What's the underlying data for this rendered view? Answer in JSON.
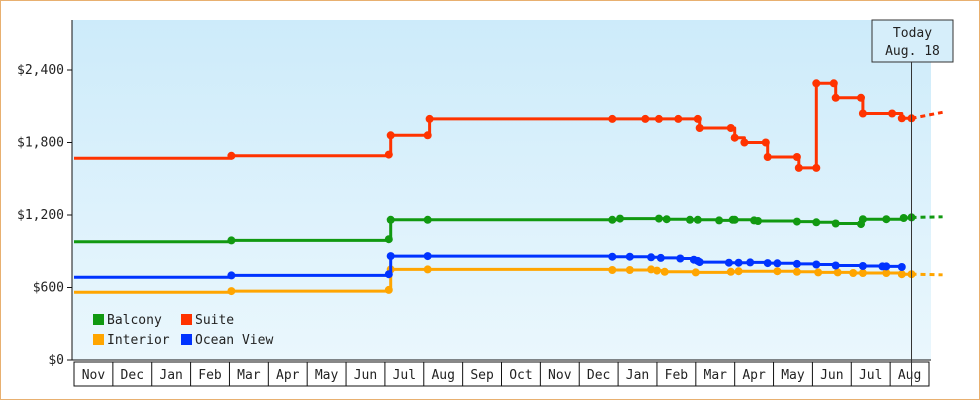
{
  "chart_data": {
    "type": "line",
    "step": true,
    "x_unit": "month index (0 = Nov start of first year)",
    "ylim": [
      0,
      2400
    ],
    "ytick_values": [
      0,
      600,
      1200,
      1800,
      2400
    ],
    "ytick_labels": [
      "$0",
      "$600",
      "$1,200",
      "$1,800",
      "$2,400"
    ],
    "month_labels": [
      "Nov",
      "Dec",
      "Jan",
      "Feb",
      "Mar",
      "Apr",
      "May",
      "Jun",
      "Jul",
      "Aug",
      "Sep",
      "Oct",
      "Nov",
      "Dec",
      "Jan",
      "Feb",
      "Mar",
      "Apr",
      "May",
      "Jun",
      "Jul",
      "Aug"
    ],
    "grid": false,
    "legend_position": "bottom-left",
    "today": {
      "line1": "Today",
      "line2": "Aug. 18",
      "x": 21.55
    },
    "colors": {
      "plot_top": "#cdebfa",
      "plot_bottom": "#eaf7fd",
      "border": "#e8b070"
    },
    "series": [
      {
        "name": "Balcony",
        "color": "#119911",
        "points": [
          [
            0,
            978
          ],
          [
            4.05,
            990
          ],
          [
            8.1,
            1000
          ],
          [
            8.15,
            1160
          ],
          [
            9.1,
            1160
          ],
          [
            13.85,
            1160
          ],
          [
            14.05,
            1170
          ],
          [
            15.05,
            1170
          ],
          [
            15.25,
            1165
          ],
          [
            15.85,
            1160
          ],
          [
            16.05,
            1160
          ],
          [
            16.6,
            1155
          ],
          [
            16.95,
            1160
          ],
          [
            17.0,
            1160
          ],
          [
            17.5,
            1155
          ],
          [
            17.6,
            1150
          ],
          [
            18.6,
            1145
          ],
          [
            19.1,
            1140
          ],
          [
            19.6,
            1130
          ],
          [
            20.25,
            1125
          ],
          [
            20.3,
            1165
          ],
          [
            20.9,
            1165
          ],
          [
            21.35,
            1175
          ],
          [
            21.55,
            1180
          ]
        ],
        "projection": [
          21.55,
          1180,
          22.35,
          1185
        ]
      },
      {
        "name": "Suite",
        "color": "#ff3300",
        "points": [
          [
            0,
            1670
          ],
          [
            4.05,
            1690
          ],
          [
            8.1,
            1700
          ],
          [
            8.15,
            1860
          ],
          [
            9.1,
            1860
          ],
          [
            9.15,
            1995
          ],
          [
            13.85,
            1995
          ],
          [
            14.7,
            1995
          ],
          [
            15.05,
            1995
          ],
          [
            15.55,
            1995
          ],
          [
            16.05,
            1995
          ],
          [
            16.1,
            1920
          ],
          [
            16.9,
            1920
          ],
          [
            17.0,
            1840
          ],
          [
            17.25,
            1800
          ],
          [
            17.8,
            1800
          ],
          [
            17.85,
            1680
          ],
          [
            18.6,
            1680
          ],
          [
            18.65,
            1590
          ],
          [
            19.1,
            1590
          ],
          [
            19.1,
            2290
          ],
          [
            19.55,
            2290
          ],
          [
            19.6,
            2170
          ],
          [
            20.25,
            2170
          ],
          [
            20.3,
            2040
          ],
          [
            21.05,
            2040
          ],
          [
            21.3,
            2000
          ],
          [
            21.55,
            2000
          ]
        ],
        "projection": [
          21.55,
          2000,
          22.35,
          2050
        ]
      },
      {
        "name": "Interior",
        "color": "#ffa500",
        "points": [
          [
            0,
            560
          ],
          [
            4.05,
            570
          ],
          [
            8.1,
            580
          ],
          [
            8.15,
            750
          ],
          [
            9.1,
            750
          ],
          [
            13.85,
            745
          ],
          [
            14.3,
            745
          ],
          [
            14.85,
            750
          ],
          [
            15.0,
            740
          ],
          [
            15.2,
            730
          ],
          [
            16.0,
            725
          ],
          [
            16.9,
            730
          ],
          [
            17.1,
            735
          ],
          [
            18.1,
            735
          ],
          [
            18.6,
            730
          ],
          [
            19.15,
            725
          ],
          [
            19.65,
            725
          ],
          [
            20.05,
            720
          ],
          [
            20.3,
            720
          ],
          [
            20.9,
            720
          ],
          [
            21.3,
            710
          ],
          [
            21.55,
            710
          ]
        ],
        "projection": [
          21.55,
          710,
          22.35,
          705
        ]
      },
      {
        "name": "Ocean View",
        "color": "#0033ff",
        "points": [
          [
            0,
            685
          ],
          [
            4.05,
            700
          ],
          [
            8.1,
            710
          ],
          [
            8.15,
            860
          ],
          [
            9.1,
            860
          ],
          [
            13.85,
            855
          ],
          [
            14.3,
            855
          ],
          [
            14.85,
            850
          ],
          [
            15.1,
            845
          ],
          [
            15.6,
            840
          ],
          [
            15.95,
            830
          ],
          [
            16.05,
            820
          ],
          [
            16.1,
            810
          ],
          [
            16.85,
            805
          ],
          [
            17.1,
            805
          ],
          [
            17.4,
            808
          ],
          [
            17.85,
            802
          ],
          [
            18.1,
            800
          ],
          [
            18.6,
            795
          ],
          [
            19.1,
            790
          ],
          [
            19.6,
            782
          ],
          [
            20.3,
            778
          ],
          [
            20.8,
            775
          ],
          [
            20.9,
            775
          ],
          [
            21.3,
            770
          ]
        ],
        "projection": null
      }
    ]
  }
}
